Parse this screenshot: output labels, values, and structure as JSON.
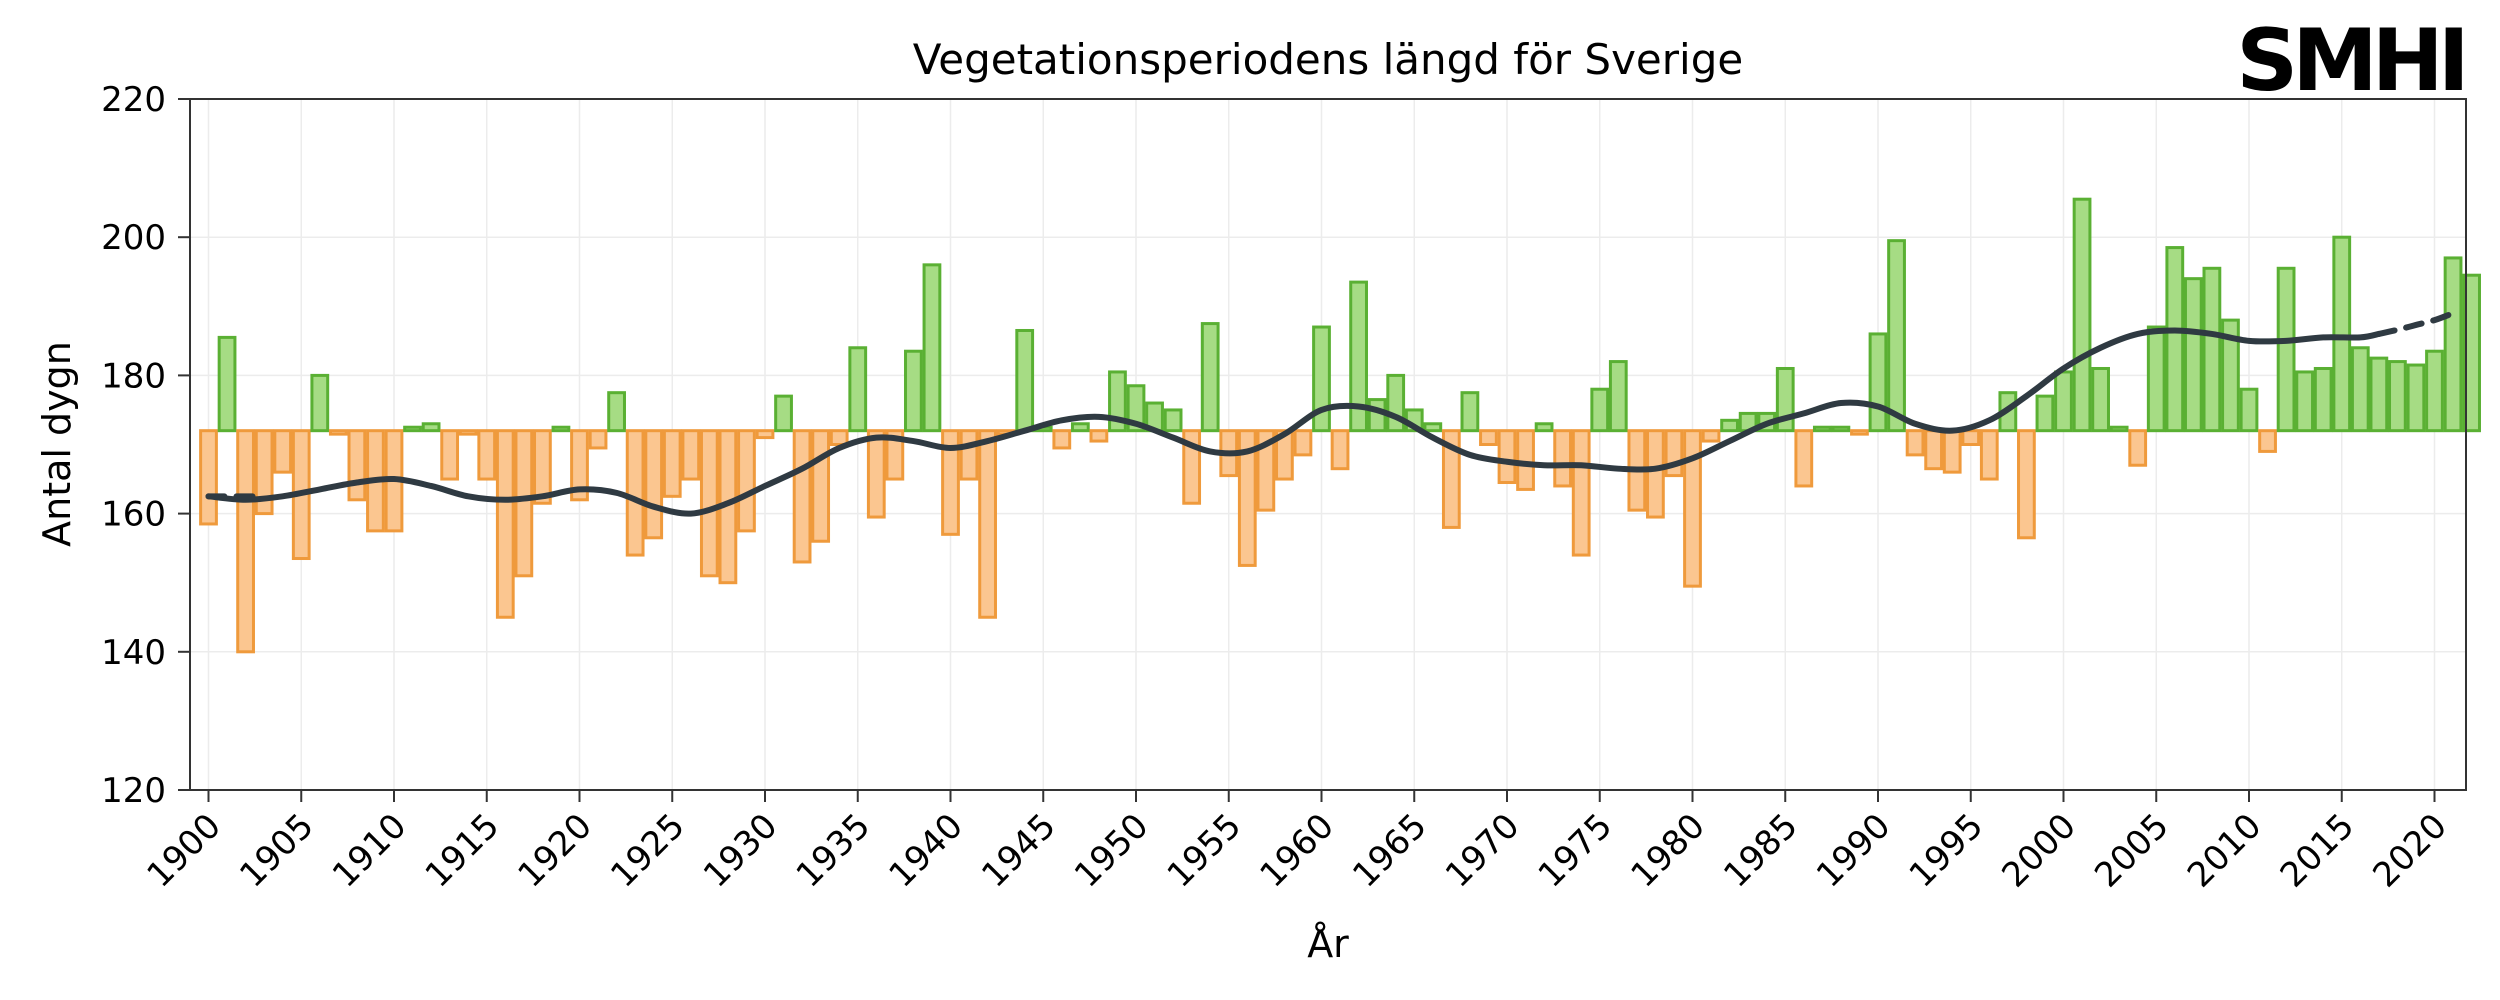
{
  "logo": "SMHI",
  "chart_data": {
    "type": "bar",
    "title": "Vegetationsperiodens längd för Sverige",
    "xlabel": "År",
    "ylabel": "Antal dygn",
    "ylim": [
      120,
      220
    ],
    "yticks": [
      120,
      140,
      160,
      180,
      200,
      220
    ],
    "xticks": [
      1900,
      1905,
      1910,
      1915,
      1920,
      1925,
      1930,
      1935,
      1940,
      1945,
      1950,
      1955,
      1960,
      1965,
      1970,
      1975,
      1980,
      1985,
      1990,
      1995,
      2000,
      2005,
      2010,
      2015,
      2020
    ],
    "baseline": 172,
    "grid": true,
    "years_start": 1900,
    "values": [
      158.5,
      185.5,
      140,
      160,
      166,
      153.5,
      180,
      171.5,
      162,
      157.5,
      157.5,
      172.5,
      173,
      165,
      171.5,
      165,
      145,
      151,
      161.5,
      172.5,
      162,
      169.5,
      177.5,
      154,
      156.5,
      162.5,
      165,
      151,
      150,
      157.5,
      171,
      177,
      153,
      156,
      170,
      184,
      159.5,
      165,
      183.5,
      196,
      157,
      165,
      145,
      171.5,
      186.5,
      172.5,
      169.5,
      173,
      170.5,
      180.5,
      178.5,
      176,
      175,
      161.5,
      187.5,
      165.5,
      152.5,
      160.5,
      165,
      168.5,
      187,
      166.5,
      193.5,
      176.5,
      180,
      175,
      173,
      158,
      177.5,
      170,
      164.5,
      163.5,
      173,
      164,
      154,
      178,
      182,
      160.5,
      159.5,
      165.5,
      149.5,
      170.5,
      173.5,
      174.5,
      174.5,
      181,
      164,
      172.5,
      172.5,
      171.5,
      186,
      199.5,
      168.5,
      166.5,
      166,
      170,
      165,
      177.5,
      156.5,
      177,
      180.5,
      205.5,
      181,
      172.5,
      167,
      187,
      198.5,
      194,
      195.5,
      188,
      178,
      169,
      195.5,
      180.5,
      181,
      200,
      184,
      182.5,
      182,
      181.5,
      183.5,
      197,
      194.5
    ],
    "series": [
      {
        "type": "line",
        "x": [
          1900,
          1902,
          1904,
          1906,
          1908,
          1910,
          1912,
          1914,
          1916,
          1918,
          1920,
          1922,
          1924,
          1926,
          1928,
          1930,
          1932,
          1934,
          1936,
          1938,
          1940,
          1942,
          1944,
          1946,
          1948,
          1950,
          1952,
          1954,
          1956,
          1958,
          1960,
          1962,
          1964,
          1966,
          1968,
          1970,
          1972,
          1974,
          1976,
          1978,
          1980,
          1982,
          1984,
          1986,
          1988,
          1990,
          1992,
          1994,
          1996,
          1998,
          2000,
          2002,
          2004,
          2006,
          2008,
          2010,
          2012,
          2014,
          2016,
          2017
        ],
        "values": [
          162.5,
          162,
          162.5,
          163.5,
          164.5,
          165,
          164,
          162.5,
          162,
          162.5,
          163.5,
          163,
          161,
          160,
          161.5,
          164,
          166.5,
          169.5,
          171,
          170.5,
          169.5,
          170.5,
          172,
          173.5,
          174,
          173,
          171,
          169,
          169,
          171.5,
          175,
          175.5,
          174,
          171,
          168.5,
          167.5,
          167,
          167,
          166.5,
          166.5,
          168,
          170.5,
          173,
          174.5,
          176,
          175.5,
          173,
          172,
          173.5,
          177,
          181,
          184,
          186,
          186.5,
          186,
          185,
          185,
          185.5,
          185.5,
          186
        ]
      },
      {
        "type": "line",
        "style": "dashed",
        "x": [
          1900,
          1903
        ],
        "values": [
          162.5,
          162.5
        ]
      },
      {
        "type": "line",
        "style": "dashed",
        "x": [
          2017,
          2018,
          2019,
          2020,
          2021
        ],
        "values": [
          186,
          186.6,
          187.3,
          188,
          189
        ]
      }
    ]
  }
}
